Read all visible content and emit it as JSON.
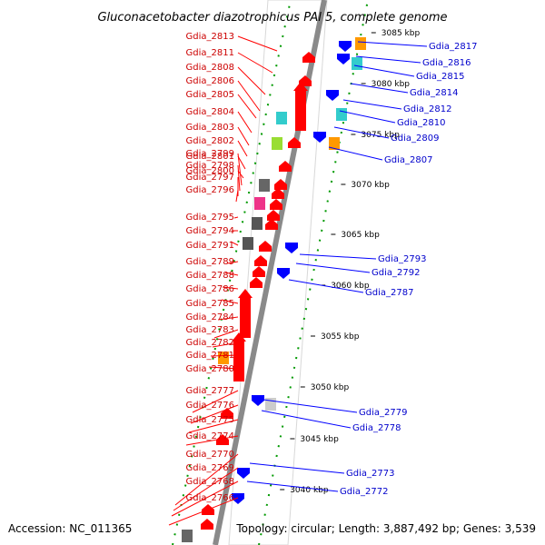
{
  "title": "Gluconacetobacter diazotrophicus PAl 5, complete genome",
  "footer": {
    "accession": "Accession: NC_011365",
    "topology": "Topology: circular; Length: 3,887,492 bp; Genes: 3,539"
  },
  "ticks": [
    "3085 kbp",
    "3080 kbp",
    "3075 kbp",
    "3070 kbp",
    "3065 kbp",
    "3060 kbp",
    "3055 kbp",
    "3050 kbp",
    "3045 kbp",
    "3040 kbp"
  ],
  "left_labels": [
    "Gdia_2813",
    "Gdia_2811",
    "Gdia_2808",
    "Gdia_2806",
    "Gdia_2805",
    "Gdia_2804",
    "Gdia_2803",
    "Gdia_2802",
    "Gdia_2801",
    "Gdia_2800",
    "Gdia_2799",
    "Gdia_2798",
    "Gdia_2797",
    "Gdia_2796",
    "Gdia_2795",
    "Gdia_2794",
    "Gdia_2791",
    "Gdia_2789",
    "Gdia_2788",
    "Gdia_2786",
    "Gdia_2785",
    "Gdia_2784",
    "Gdia_2783",
    "Gdia_2782",
    "Gdia_2781",
    "Gdia_2780",
    "Gdia_2777",
    "Gdia_2776",
    "Gdia_2775",
    "Gdia_2774",
    "Gdia_2770",
    "Gdia_2769",
    "Gdia_2768",
    "Gdia_2766"
  ],
  "right_labels": [
    "Gdia_2817",
    "Gdia_2816",
    "Gdia_2815",
    "Gdia_2814",
    "Gdia_2812",
    "Gdia_2810",
    "Gdia_2809",
    "Gdia_2807",
    "Gdia_2793",
    "Gdia_2792",
    "Gdia_2787",
    "Gdia_2779",
    "Gdia_2778",
    "Gdia_2773",
    "Gdia_2772"
  ],
  "colors": {
    "forward": "#ff0000",
    "reverse": "#0000ff",
    "backbone": "#888888",
    "tick": "#008000",
    "left_label": "#cc0000",
    "right_label": "#0000cc"
  }
}
